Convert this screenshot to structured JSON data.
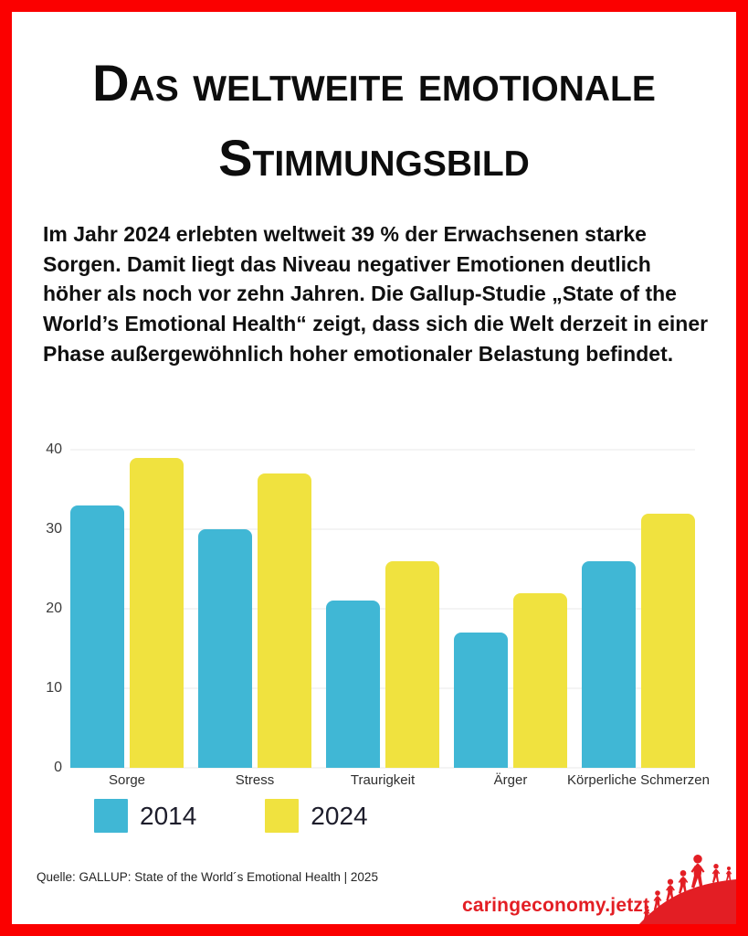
{
  "title": "Das weltweite emotionale Stimmungsbild",
  "intro": "Im Jahr 2024 erlebten weltweit 39 % der Erwachsenen starke Sorgen. Damit liegt das Niveau negativer Emotionen deutlich höher als noch vor zehn Jahren. Die Gallup-Studie „State of the World’s Emotional Health“ zeigt, dass sich die Welt derzeit in einer Phase außergewöhnlich hoher emotionaler Belastung befindet.",
  "chart_data": {
    "type": "bar",
    "categories": [
      "Sorge",
      "Stress",
      "Traurigkeit",
      "Ärger",
      "Körperliche Schmerzen"
    ],
    "series": [
      {
        "name": "2014",
        "color": "#40B7D5",
        "values": [
          33,
          30,
          21,
          17,
          26
        ]
      },
      {
        "name": "2024",
        "color": "#F0E23F",
        "values": [
          39,
          37,
          26,
          22,
          32
        ]
      }
    ],
    "title": "",
    "xlabel": "",
    "ylabel": "",
    "ylim": [
      0,
      40
    ],
    "yticks": [
      0,
      10,
      20,
      30,
      40
    ],
    "grid": true,
    "legend_position": "bottom-left"
  },
  "source": "Quelle: GALLUP: State of the World´s Emotional Health | 2025",
  "brand": "caringeconomy.jetzt",
  "colors": {
    "frame-red": "#FB0000",
    "brand-red": "#E31E24",
    "bar-2014": "#40B7D5",
    "bar-2024": "#F0E23F",
    "grid": "#EAEAEA",
    "axis-text": "#3C3C3C"
  }
}
